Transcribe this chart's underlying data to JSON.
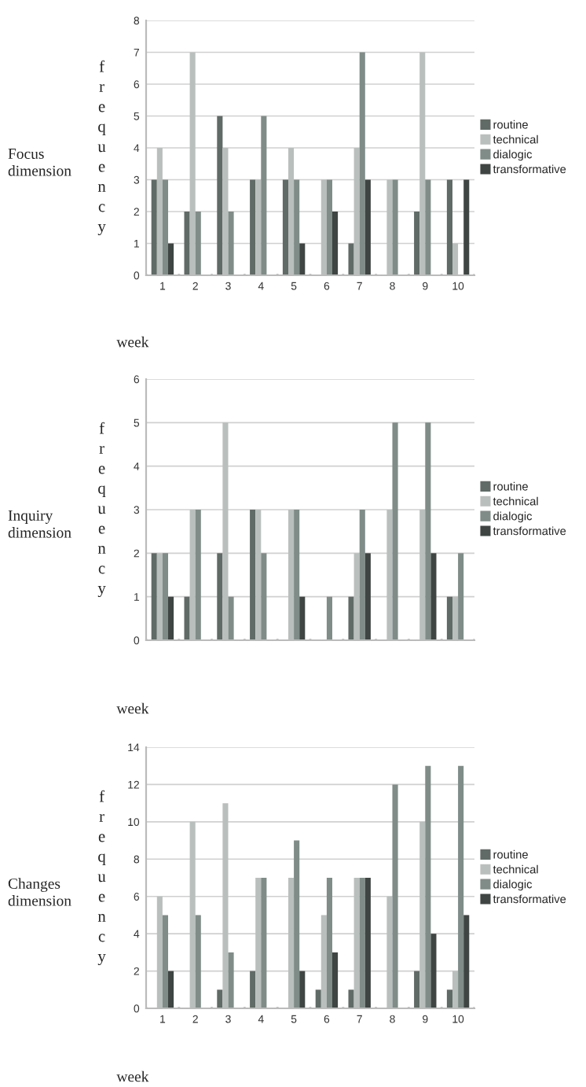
{
  "chart_data": [
    {
      "type": "bar",
      "title": "Focus dimension",
      "ylabel": "frequency",
      "xlabel": "week",
      "categories": [
        "1",
        "2",
        "3",
        "4",
        "5",
        "6",
        "7",
        "8",
        "9",
        "10"
      ],
      "series": [
        {
          "name": "routine",
          "color": "#606a66",
          "values": [
            3,
            2,
            5,
            3,
            3,
            0,
            1,
            0,
            2,
            3
          ]
        },
        {
          "name": "technical",
          "color": "#b9bfbd",
          "values": [
            4,
            7,
            4,
            3,
            4,
            3,
            4,
            3,
            7,
            1
          ]
        },
        {
          "name": "dialogic",
          "color": "#7f8c88",
          "values": [
            3,
            2,
            2,
            5,
            3,
            3,
            7,
            3,
            3,
            0
          ]
        },
        {
          "name": "transformative",
          "color": "#3e4542",
          "values": [
            1,
            0,
            0,
            0,
            1,
            2,
            3,
            0,
            0,
            3
          ]
        }
      ],
      "ylim": [
        0,
        8
      ],
      "yticks": [
        0,
        1,
        2,
        3,
        4,
        5,
        6,
        7,
        8
      ],
      "grid": "y",
      "legend": "right"
    },
    {
      "type": "bar",
      "title": "Inquiry dimension",
      "ylabel": "frequency",
      "xlabel": "week",
      "categories": [
        null,
        null,
        null,
        null,
        null,
        null,
        null,
        null,
        null,
        null
      ],
      "series": [
        {
          "name": "routine",
          "color": "#606a66",
          "values": [
            2,
            1,
            2,
            3,
            0,
            0,
            1,
            0,
            0,
            1
          ]
        },
        {
          "name": "technical",
          "color": "#b9bfbd",
          "values": [
            2,
            3,
            5,
            3,
            3,
            0,
            2,
            3,
            3,
            1
          ]
        },
        {
          "name": "dialogic",
          "color": "#7f8c88",
          "values": [
            2,
            3,
            1,
            2,
            3,
            1,
            3,
            5,
            5,
            2
          ]
        },
        {
          "name": "transformative",
          "color": "#3e4542",
          "values": [
            1,
            0,
            0,
            0,
            1,
            0,
            2,
            0,
            2,
            0
          ]
        }
      ],
      "ylim": [
        0,
        6
      ],
      "yticks": [
        0,
        1,
        2,
        3,
        4,
        5,
        6
      ],
      "grid": "y",
      "legend": "right",
      "tick_labels": "y"
    },
    {
      "type": "bar",
      "title": "Changes dimension",
      "ylabel": "frequency",
      "xlabel": "week",
      "categories": [
        "1",
        "2",
        "3",
        "4",
        "5",
        "6",
        "7",
        "8",
        "9",
        "10"
      ],
      "series": [
        {
          "name": "routine",
          "color": "#606a66",
          "values": [
            0,
            0,
            1,
            2,
            0,
            1,
            1,
            0,
            2,
            1
          ]
        },
        {
          "name": "technical",
          "color": "#b9bfbd",
          "values": [
            6,
            10,
            11,
            7,
            7,
            5,
            7,
            6,
            10,
            2
          ]
        },
        {
          "name": "dialogic",
          "color": "#7f8c88",
          "values": [
            5,
            5,
            3,
            7,
            9,
            7,
            7,
            12,
            13,
            13
          ]
        },
        {
          "name": "transformative",
          "color": "#3e4542",
          "values": [
            2,
            0,
            0,
            0,
            2,
            3,
            7,
            0,
            4,
            5
          ]
        }
      ],
      "ylim": [
        0,
        14
      ],
      "yticks": [
        0,
        2,
        4,
        6,
        8,
        10,
        12,
        14
      ],
      "grid": "y",
      "legend": "right"
    }
  ]
}
